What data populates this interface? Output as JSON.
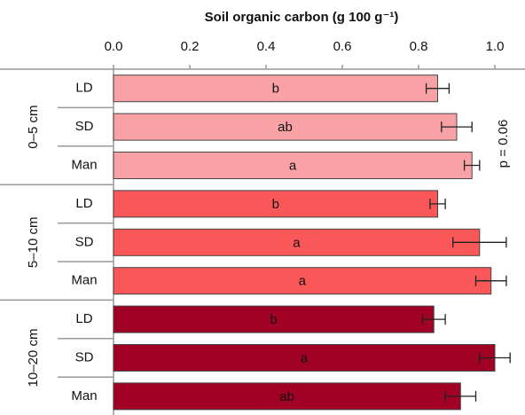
{
  "chart_data": {
    "type": "bar",
    "orientation": "horizontal",
    "title": "Soil organic carbon (g 100 g⁻¹)",
    "xlim": [
      0,
      1
    ],
    "xticks": [
      {
        "value": 0,
        "label": "0.0"
      },
      0.2,
      0.4,
      0.6,
      0.8,
      {
        "value": 1,
        "label": "1.0"
      }
    ],
    "annotation": "p = 0.06",
    "groups": [
      {
        "name": "0–5 cm",
        "color": "#f9a2a5",
        "categories": [
          "LD",
          "SD",
          "Man"
        ],
        "values": [
          0.85,
          0.9,
          0.94
        ],
        "errors": [
          0.03,
          0.04,
          0.02
        ],
        "letters": [
          "b",
          "ab",
          "a"
        ]
      },
      {
        "name": "5–10 cm",
        "color": "#fa5858",
        "categories": [
          "LD",
          "SD",
          "Man"
        ],
        "values": [
          0.85,
          0.96,
          0.99
        ],
        "errors": [
          0.02,
          0.07,
          0.04
        ],
        "letters": [
          "b",
          "a",
          "a"
        ]
      },
      {
        "name": "10–20 cm",
        "color": "#a10125",
        "categories": [
          "LD",
          "SD",
          "Man"
        ],
        "values": [
          0.84,
          1.0,
          0.91
        ],
        "errors": [
          0.03,
          0.04,
          0.04
        ],
        "letters": [
          "b",
          "a",
          "ab"
        ]
      }
    ]
  }
}
